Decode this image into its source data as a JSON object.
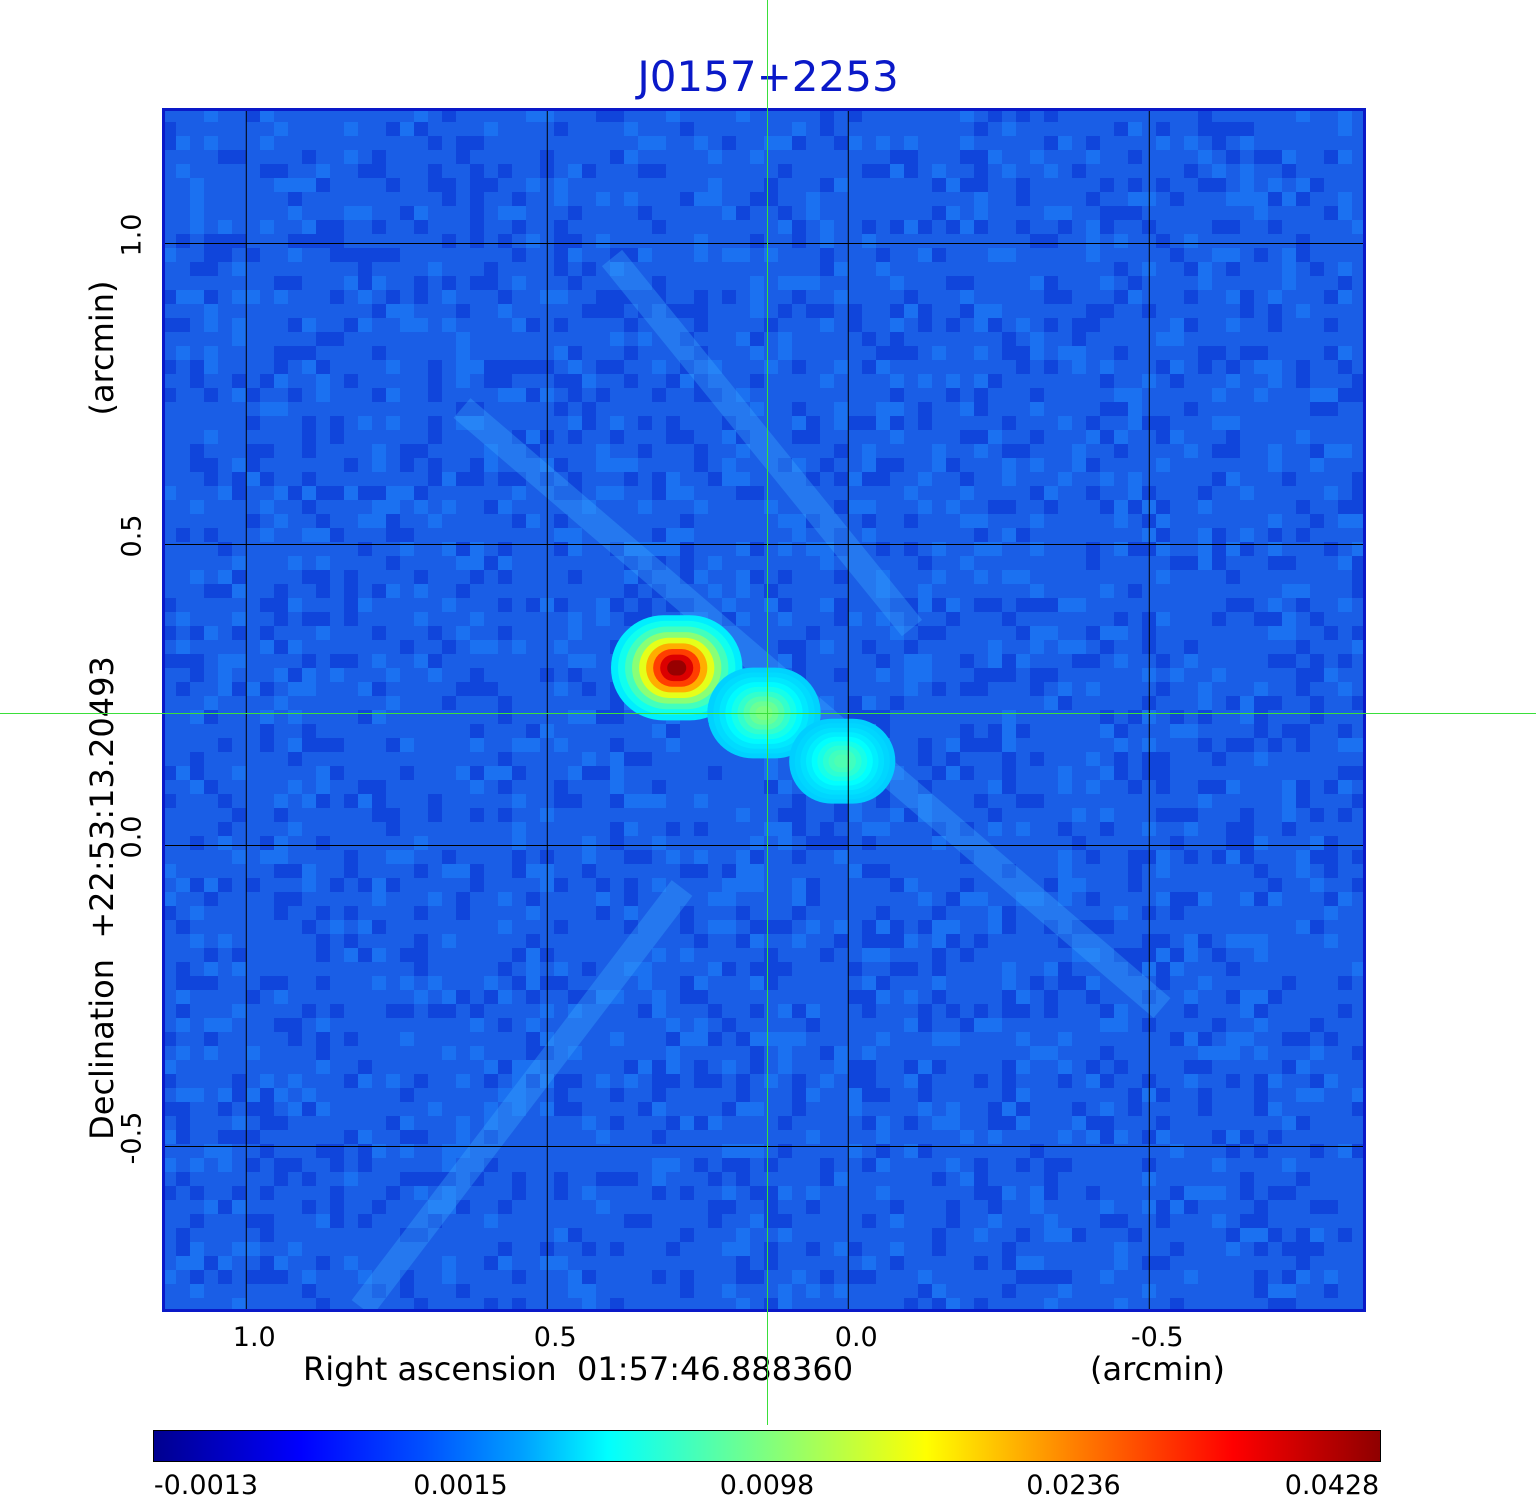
{
  "chart_data": {
    "type": "heatmap",
    "title": "J0157+2253",
    "xlabel": "Right ascension  01:57:46.888360",
    "xunit": "(arcmin)",
    "ylabel": "Declination  +22:53:13.20493",
    "yunit": "(arcmin)",
    "xlim": [
      1.14,
      -0.86
    ],
    "ylim": [
      -0.775,
      1.225
    ],
    "x_ticks": [
      1.0,
      0.5,
      0.0,
      -0.5
    ],
    "x_tick_labels": [
      "1.0",
      "0.5",
      "0.0",
      "-0.5"
    ],
    "y_ticks": [
      1.0,
      0.5,
      0.0,
      -0.5
    ],
    "y_tick_labels": [
      "1.0",
      "0.5",
      "0.0",
      "-0.5"
    ],
    "grid": true,
    "crosshair": {
      "x": 0.135,
      "y": 0.22
    },
    "sources": [
      {
        "x": 0.285,
        "y": 0.295,
        "peak": 0.0428,
        "sigma": 0.035
      },
      {
        "x": 0.14,
        "y": 0.22,
        "peak": 0.0115,
        "sigma": 0.03
      },
      {
        "x": 0.01,
        "y": 0.14,
        "peak": 0.0085,
        "sigma": 0.028
      }
    ],
    "colorbar": {
      "min": -0.0013,
      "max": 0.0428,
      "ticks": [
        -0.0013,
        0.0015,
        0.0098,
        0.0236,
        0.0428
      ],
      "tick_labels": [
        "-0.0013",
        "0.0015",
        "0.0098",
        "0.0236",
        "0.0428"
      ],
      "colormap": "jet"
    },
    "colors": {
      "title": "#0a19c8",
      "frame": "#0a19c8",
      "background": "#1a5ee6",
      "crosshair": "#3adf3a",
      "grid": "#000000"
    }
  }
}
